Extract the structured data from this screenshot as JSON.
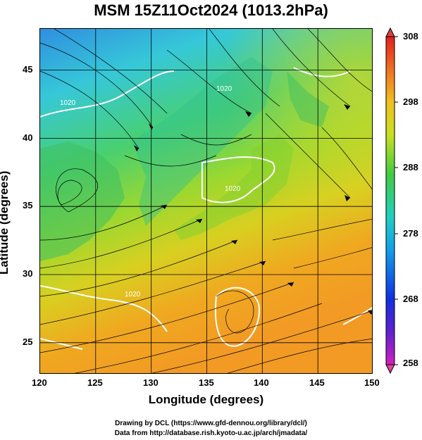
{
  "title": "MSM 15Z11Oct2024 (1013.2hPa)",
  "xlabel": "Longitude (degrees)",
  "ylabel": "Latitude  (degrees)",
  "x_ticks": [
    "120",
    "125",
    "130",
    "135",
    "140",
    "145",
    "150"
  ],
  "y_ticks": [
    "25",
    "30",
    "35",
    "40",
    "45"
  ],
  "colorbar": {
    "ticks": [
      "258",
      "268",
      "278",
      "288",
      "298",
      "308"
    ],
    "min": 258,
    "max": 308
  },
  "contour_labels": [
    "1020",
    "1020",
    "1020",
    "1020"
  ],
  "credits": {
    "line1": "Drawing by DCL (https://www.gfd-dennou.org/library/dcl/)",
    "line2": "Data from http://database.rish.kyoto-u.ac.jp/arch/jmadata/"
  },
  "colors": {
    "cold": "#2aa0e8",
    "mid": "#44cc44",
    "warm": "#f0a020",
    "contour": "#ffffff"
  }
}
